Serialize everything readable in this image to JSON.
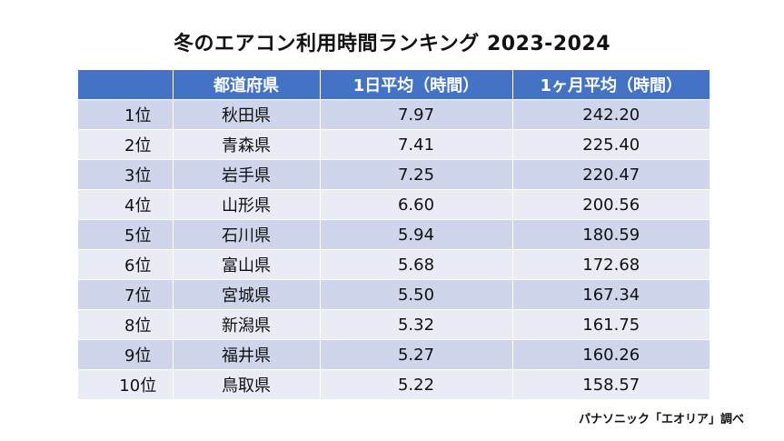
{
  "title": "冬のエアコン利用時間ランキング  2023-2024",
  "table": {
    "headers": [
      "",
      "都道府県",
      "1日平均（時間）",
      "1ヶ月平均（時間）"
    ],
    "rows": [
      {
        "rank": "1位",
        "prefecture": "秋田県",
        "daily": "7.97",
        "monthly": "242.20"
      },
      {
        "rank": "2位",
        "prefecture": "青森県",
        "daily": "7.41",
        "monthly": "225.40"
      },
      {
        "rank": "3位",
        "prefecture": "岩手県",
        "daily": "7.25",
        "monthly": "220.47"
      },
      {
        "rank": "4位",
        "prefecture": "山形県",
        "daily": "6.60",
        "monthly": "200.56"
      },
      {
        "rank": "5位",
        "prefecture": "石川県",
        "daily": "5.94",
        "monthly": "180.59"
      },
      {
        "rank": "6位",
        "prefecture": "富山県",
        "daily": "5.68",
        "monthly": "172.68"
      },
      {
        "rank": "7位",
        "prefecture": "宮城県",
        "daily": "5.50",
        "monthly": "167.34"
      },
      {
        "rank": "8位",
        "prefecture": "新潟県",
        "daily": "5.32",
        "monthly": "161.75"
      },
      {
        "rank": "9位",
        "prefecture": "福井県",
        "daily": "5.27",
        "monthly": "160.26"
      },
      {
        "rank": "10位",
        "prefecture": "鳥取県",
        "daily": "5.22",
        "monthly": "158.57"
      }
    ]
  },
  "source": "パナソニック「エオリア」調べ",
  "colors": {
    "header_bg": "#4472c4",
    "row_odd": "#cfd5ea",
    "row_even": "#e9ebf5"
  }
}
